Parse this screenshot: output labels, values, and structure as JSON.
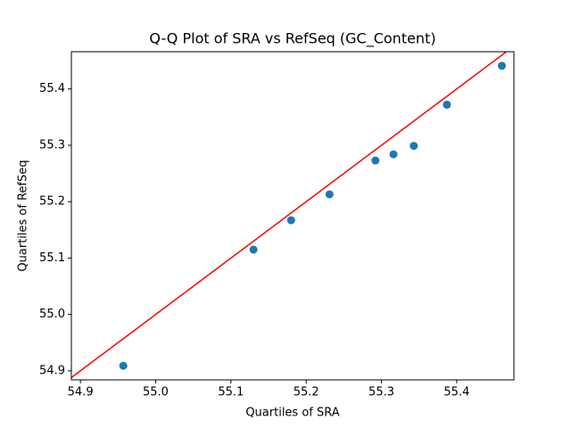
{
  "chart_data": {
    "type": "scatter",
    "title": "Q-Q Plot of SRA vs RefSeq (GC_Content)",
    "x_label": "Quartiles of SRA",
    "y_label": "Quartiles of RefSeq",
    "series": [
      {
        "color": "#1f77b4",
        "x": [
          54.957,
          55.13,
          55.18,
          55.231,
          55.292,
          55.316,
          55.343,
          55.387,
          55.46
        ],
        "values": [
          54.909,
          55.115,
          55.167,
          55.213,
          55.273,
          55.284,
          55.299,
          55.372,
          55.441
        ]
      }
    ],
    "line_color": "#ff0000",
    "xlim": [
      54.888,
      55.476
    ],
    "xticks": [
      {
        "value": 54.9,
        "label": "54.9"
      },
      {
        "value": 55.0,
        "label": "55.0"
      },
      {
        "value": 55.1,
        "label": "55.1"
      },
      {
        "value": 55.2,
        "label": "55.2"
      },
      {
        "value": 55.3,
        "label": "55.3"
      },
      {
        "value": 55.4,
        "label": "55.4"
      }
    ],
    "ylim": [
      54.884,
      55.466
    ],
    "yticks": [
      {
        "value": 54.9,
        "label": "54.9"
      },
      {
        "value": 55.0,
        "label": "55.0"
      },
      {
        "value": 55.1,
        "label": "55.1"
      },
      {
        "value": 55.2,
        "label": "55.2"
      },
      {
        "value": 55.3,
        "label": "55.3"
      },
      {
        "value": 55.4,
        "label": "55.4"
      }
    ]
  }
}
